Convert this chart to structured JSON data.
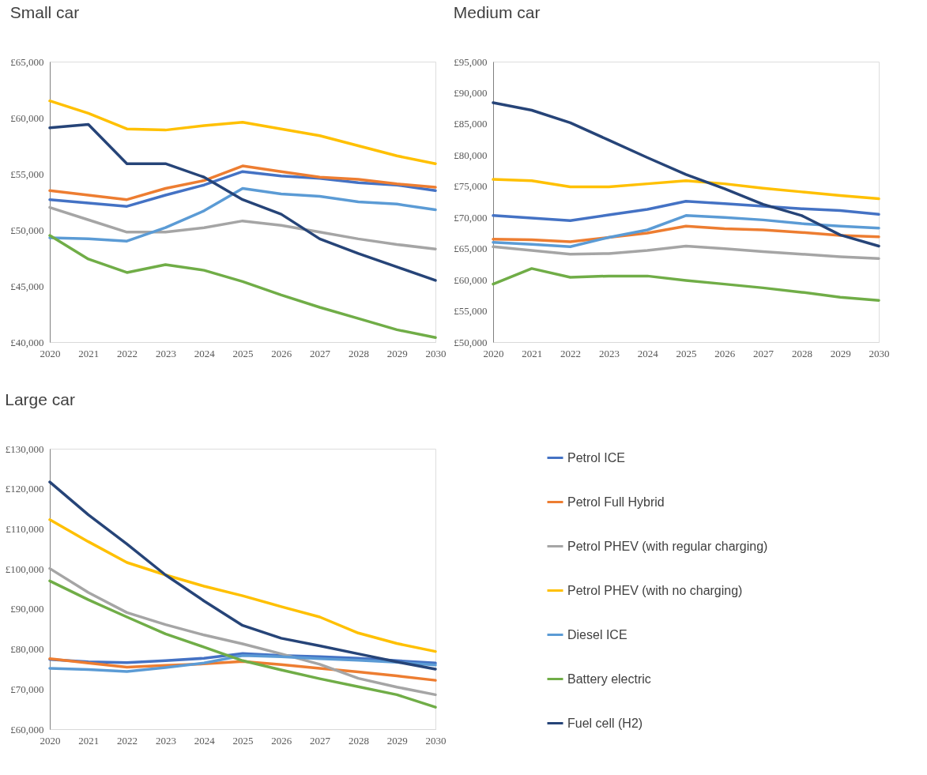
{
  "chart_data": [
    {
      "type": "line",
      "title": "Small car",
      "categories": [
        "2020",
        "2021",
        "2022",
        "2023",
        "2024",
        "2025",
        "2026",
        "2027",
        "2028",
        "2029",
        "2030"
      ],
      "ylim": [
        40000,
        65000
      ],
      "yticks": [
        {
          "value": 40000,
          "label": "£40,000"
        },
        {
          "value": 45000,
          "label": "£45,000"
        },
        {
          "value": 50000,
          "label": "£50,000"
        },
        {
          "value": 55000,
          "label": "£55,000"
        },
        {
          "value": 60000,
          "label": "£60,000"
        },
        {
          "value": 65000,
          "label": "£65,000"
        }
      ],
      "grid": false,
      "series": [
        {
          "color": "#4472c4",
          "values": [
            52700,
            52400,
            52100,
            53100,
            54000,
            55200,
            54800,
            54600,
            54200,
            54000,
            53500
          ]
        },
        {
          "color": "#ed7d31",
          "values": [
            53500,
            53100,
            52700,
            53700,
            54400,
            55700,
            55200,
            54700,
            54500,
            54100,
            53800
          ]
        },
        {
          "color": "#a5a5a5",
          "values": [
            52000,
            50900,
            49800,
            49800,
            50200,
            50800,
            50400,
            49800,
            49200,
            48700,
            48300
          ]
        },
        {
          "color": "#ffc000",
          "values": [
            61500,
            60400,
            59000,
            58900,
            59300,
            59600,
            59000,
            58400,
            57500,
            56600,
            55900
          ]
        },
        {
          "color": "#5b9bd5",
          "values": [
            49300,
            49200,
            49000,
            50200,
            51700,
            53700,
            53200,
            53000,
            52500,
            52300,
            51800
          ]
        },
        {
          "color": "#70ad47",
          "values": [
            49500,
            47400,
            46200,
            46900,
            46400,
            45400,
            44200,
            43100,
            42100,
            41100,
            40400
          ]
        },
        {
          "color": "#264478",
          "values": [
            59100,
            59400,
            55900,
            55900,
            54700,
            52700,
            51400,
            49200,
            47900,
            46700,
            45500
          ]
        }
      ]
    },
    {
      "type": "line",
      "title": "Medium car",
      "categories": [
        "2020",
        "2021",
        "2022",
        "2023",
        "2024",
        "2025",
        "2026",
        "2027",
        "2028",
        "2029",
        "2030"
      ],
      "ylim": [
        50000,
        95000
      ],
      "yticks": [
        {
          "value": 50000,
          "label": "£50,000"
        },
        {
          "value": 55000,
          "label": "£55,000"
        },
        {
          "value": 60000,
          "label": "£60,000"
        },
        {
          "value": 65000,
          "label": "£65,000"
        },
        {
          "value": 70000,
          "label": "£70,000"
        },
        {
          "value": 75000,
          "label": "£75,000"
        },
        {
          "value": 80000,
          "label": "£80,000"
        },
        {
          "value": 85000,
          "label": "£85,000"
        },
        {
          "value": 90000,
          "label": "£90,000"
        },
        {
          "value": 95000,
          "label": "£95,000"
        }
      ],
      "grid": false,
      "legend": false,
      "series": [
        {
          "color": "#4472c4",
          "values": [
            70300,
            69900,
            69500,
            70400,
            71300,
            72600,
            72200,
            71800,
            71400,
            71100,
            70500
          ]
        },
        {
          "color": "#ed7d31",
          "values": [
            66500,
            66400,
            66100,
            66800,
            67500,
            68600,
            68200,
            68000,
            67600,
            67100,
            66900
          ]
        },
        {
          "color": "#a5a5a5",
          "values": [
            65300,
            64700,
            64100,
            64200,
            64700,
            65400,
            65000,
            64500,
            64100,
            63700,
            63400
          ]
        },
        {
          "color": "#ffc000",
          "values": [
            76100,
            75900,
            74900,
            74900,
            75400,
            75900,
            75400,
            74700,
            74100,
            73500,
            73000
          ]
        },
        {
          "color": "#5b9bd5",
          "values": [
            66000,
            65700,
            65300,
            66800,
            68000,
            70300,
            70000,
            69600,
            69000,
            68600,
            68300
          ]
        },
        {
          "color": "#70ad47",
          "values": [
            59300,
            61800,
            60400,
            60600,
            60600,
            59900,
            59300,
            58700,
            58000,
            57200,
            56700
          ]
        },
        {
          "color": "#264478",
          "values": [
            88400,
            87200,
            85200,
            82400,
            79600,
            76900,
            74600,
            72100,
            70300,
            67200,
            65400
          ]
        }
      ]
    },
    {
      "type": "line",
      "title": "Large car",
      "categories": [
        "2020",
        "2021",
        "2022",
        "2023",
        "2024",
        "2025",
        "2026",
        "2027",
        "2028",
        "2029",
        "2030"
      ],
      "ylim": [
        60000,
        130000
      ],
      "yticks": [
        {
          "value": 60000,
          "label": "£60,000"
        },
        {
          "value": 70000,
          "label": "£70,000"
        },
        {
          "value": 80000,
          "label": "£80,000"
        },
        {
          "value": 90000,
          "label": "£90,000"
        },
        {
          "value": 100000,
          "label": "£100,000"
        },
        {
          "value": 110000,
          "label": "£110,000"
        },
        {
          "value": 120000,
          "label": "£120,000"
        },
        {
          "value": 130000,
          "label": "£130,000"
        }
      ],
      "grid": false,
      "legend": "right",
      "series": [
        {
          "name": "Petrol ICE",
          "color": "#4472c4",
          "values": [
            77400,
            76800,
            76600,
            77100,
            77700,
            78900,
            78400,
            78100,
            77700,
            77100,
            76500
          ]
        },
        {
          "name": "Petrol Full Hybrid",
          "color": "#ed7d31",
          "values": [
            77600,
            76500,
            75500,
            75900,
            76300,
            76900,
            76100,
            75200,
            74300,
            73300,
            72200
          ]
        },
        {
          "name": "Petrol PHEV (with regular charging)",
          "color": "#a5a5a5",
          "values": [
            100100,
            94100,
            89100,
            86100,
            83500,
            81300,
            78800,
            76200,
            72700,
            70500,
            68600
          ]
        },
        {
          "name": "Petrol PHEV  (with no charging)",
          "color": "#ffc000",
          "values": [
            112300,
            106800,
            101600,
            98500,
            95700,
            93300,
            90600,
            88000,
            84000,
            81400,
            79400
          ]
        },
        {
          "name": "Diesel ICE",
          "color": "#5b9bd5",
          "values": [
            75200,
            74900,
            74400,
            75400,
            76500,
            78400,
            78100,
            77600,
            77200,
            76700,
            76000
          ]
        },
        {
          "name": "Battery electric",
          "color": "#70ad47",
          "values": [
            97000,
            92300,
            88000,
            83800,
            80500,
            77100,
            74800,
            72600,
            70600,
            68600,
            65500
          ]
        },
        {
          "name": "Fuel cell (H2)",
          "color": "#264478",
          "values": [
            121700,
            113500,
            106200,
            98500,
            92000,
            85900,
            82700,
            80800,
            78800,
            76800,
            75000
          ]
        }
      ]
    }
  ]
}
